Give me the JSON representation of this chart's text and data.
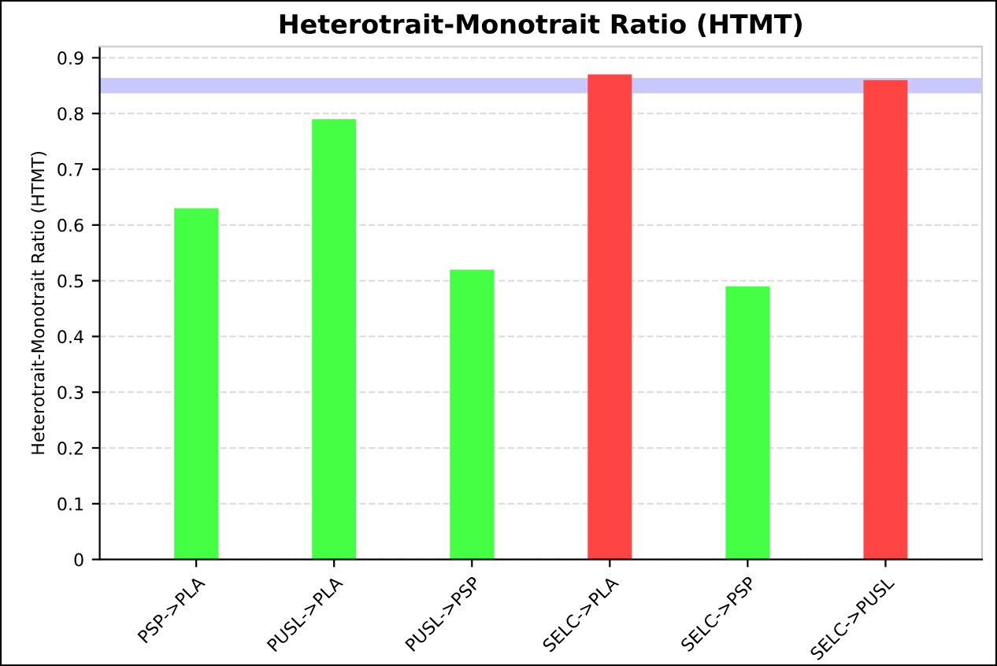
{
  "chart_data": {
    "type": "bar",
    "title": "Heterotrait-Monotrait Ratio (HTMT)",
    "ylabel": "Heterotrait-Monotrait Ratio (HTMT)",
    "categories": [
      "PSP->PLA",
      "PUSL->PLA",
      "PUSL->PSP",
      "SELC->PLA",
      "SELC->PSP",
      "SELC->PUSL"
    ],
    "values": [
      0.63,
      0.79,
      0.52,
      0.87,
      0.49,
      0.86
    ],
    "colors": [
      "#44ff44",
      "#44ff44",
      "#44ff44",
      "#ff4444",
      "#44ff44",
      "#ff4444"
    ],
    "ylim": [
      0,
      0.92
    ],
    "yticks": [
      0,
      0.1,
      0.2,
      0.3,
      0.4,
      0.5,
      0.6,
      0.7,
      0.8,
      0.9
    ],
    "grid": "y",
    "ref_lines": [
      {
        "axis": "y",
        "value": 0.85,
        "label": null,
        "color": "#c8c8ff"
      }
    ]
  }
}
